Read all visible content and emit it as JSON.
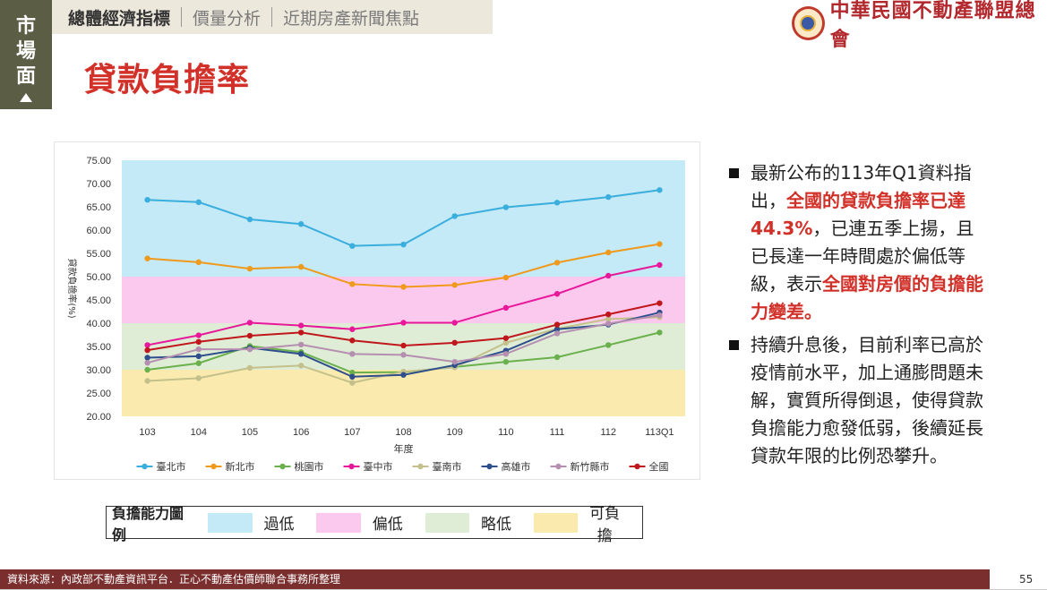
{
  "side_tag": [
    "市",
    "場",
    "面"
  ],
  "nav": {
    "items": [
      "總體經濟指標",
      "價量分析",
      "近期房產新聞焦點"
    ],
    "active_index": 0
  },
  "org_name": "中華民國不動產聯盟總會",
  "title": "貸款負擔率",
  "bullets": [
    [
      {
        "text": "最新公布的113年Q1資料指出，",
        "hl": false
      },
      {
        "text": "全國的貸款負擔率已達44.3%",
        "hl": true
      },
      {
        "text": "，已連五季上揚，且已長達一年時間處於偏低等級，表示",
        "hl": false
      },
      {
        "text": "全國對房價的負擔能力變差。",
        "hl": true
      }
    ],
    [
      {
        "text": "持續升息後，目前利率已高於疫情前水平，加上通膨問題未解，實質所得倒退，使得貸款負擔能力愈發低弱，後續延長貸款年限的比例恐攀升。",
        "hl": false
      }
    ]
  ],
  "legend_box": {
    "title": "負擔能力圖例",
    "items": [
      {
        "label": "過低",
        "color": "#c4e9f7"
      },
      {
        "label": "偏低",
        "color": "#fcc9ee"
      },
      {
        "label": "略低",
        "color": "#dfedd7"
      },
      {
        "label": "可負擔",
        "color": "#faeaad"
      }
    ]
  },
  "footer": "資料來源：內政部不動產資訊平台．正心不動產估價師聯合事務所整理",
  "page_number": "55",
  "chart_data": {
    "type": "line",
    "xlabel": "年度",
    "ylabel": "貸款負擔率(%)",
    "ylim": [
      20,
      75
    ],
    "y_ticks": [
      "20.00",
      "25.00",
      "30.00",
      "35.00",
      "40.00",
      "45.00",
      "50.00",
      "55.00",
      "60.00",
      "65.00",
      "70.00",
      "75.00"
    ],
    "categories": [
      "103",
      "104",
      "105",
      "106",
      "107",
      "108",
      "109",
      "110",
      "111",
      "112",
      "113Q1"
    ],
    "bands": [
      {
        "from": 50,
        "to": 75,
        "color": "#c4e9f7"
      },
      {
        "from": 40,
        "to": 50,
        "color": "#fcc9ee"
      },
      {
        "from": 30,
        "to": 40,
        "color": "#dfedd7"
      },
      {
        "from": 20,
        "to": 30,
        "color": "#faeaad"
      }
    ],
    "legend_position": "bottom",
    "series": [
      {
        "name": "臺北市",
        "color": "#3aaedc",
        "values": [
          66.5,
          66.0,
          62.3,
          61.3,
          56.6,
          56.9,
          63.0,
          64.9,
          65.9,
          67.1,
          68.6
        ]
      },
      {
        "name": "新北市",
        "color": "#ef9a1c",
        "values": [
          53.9,
          53.1,
          51.7,
          52.1,
          48.4,
          47.8,
          48.2,
          49.8,
          53.0,
          55.2,
          57.0
        ]
      },
      {
        "name": "桃園市",
        "color": "#6ab04c",
        "values": [
          30.0,
          31.4,
          35.1,
          33.8,
          29.4,
          29.5,
          30.6,
          31.7,
          32.7,
          35.3,
          38.0
        ]
      },
      {
        "name": "臺中市",
        "color": "#e8189a",
        "values": [
          35.3,
          37.4,
          40.1,
          39.5,
          38.7,
          40.1,
          40.1,
          43.3,
          46.3,
          50.2,
          52.5
        ]
      },
      {
        "name": "臺南市",
        "color": "#c3c08b",
        "values": [
          27.6,
          28.2,
          30.4,
          30.9,
          27.2,
          29.6,
          30.5,
          35.8,
          38.8,
          40.9,
          41.3
        ]
      },
      {
        "name": "高雄市",
        "color": "#2e4f8c",
        "values": [
          32.6,
          32.9,
          34.7,
          33.4,
          28.5,
          28.9,
          31.0,
          34.1,
          38.7,
          39.7,
          42.3
        ]
      },
      {
        "name": "新竹縣市",
        "color": "#b58fb0",
        "values": [
          31.5,
          34.4,
          34.4,
          35.4,
          33.4,
          33.2,
          31.7,
          33.4,
          37.8,
          39.9,
          41.7
        ]
      },
      {
        "name": "全國",
        "color": "#c0171d",
        "values": [
          34.2,
          36.0,
          37.3,
          38.0,
          36.3,
          35.2,
          35.8,
          36.8,
          39.7,
          41.9,
          44.3
        ]
      }
    ]
  }
}
